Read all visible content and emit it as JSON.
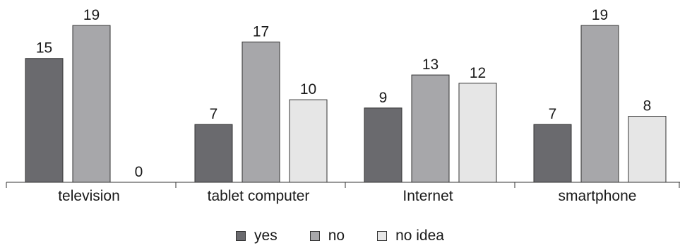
{
  "chart_data": {
    "type": "bar",
    "categories": [
      "television",
      "tablet computer",
      "Internet",
      "smartphone"
    ],
    "series": [
      {
        "name": "yes",
        "values": [
          15,
          7,
          9,
          7
        ],
        "color": "#6a6a6e"
      },
      {
        "name": "no",
        "values": [
          19,
          17,
          13,
          19
        ],
        "color": "#a7a7aa"
      },
      {
        "name": "no idea",
        "values": [
          0,
          10,
          12,
          8
        ],
        "color": "#e6e6e6"
      }
    ],
    "data_labels": true,
    "title": "",
    "xlabel": "",
    "ylabel": "",
    "ylim": [
      0,
      19
    ],
    "grid": false,
    "legend_position": "bottom"
  }
}
